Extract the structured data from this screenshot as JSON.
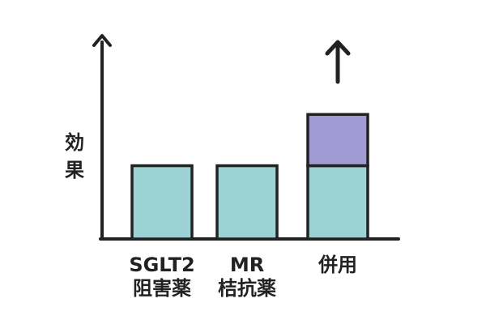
{
  "chart_data": {
    "type": "bar",
    "ylabel": "効果",
    "categories": [
      {
        "line1": "SGLT2",
        "line2": "阻害薬"
      },
      {
        "line1": "MR",
        "line2": "桔抗薬"
      },
      {
        "line1": "併用",
        "line2": ""
      }
    ],
    "series": [
      {
        "values": [
          1,
          1,
          1
        ],
        "color": "#9dd2d4"
      },
      {
        "values": [
          0,
          0,
          0.7
        ],
        "color": "#a29bd3"
      }
    ],
    "ylim": [
      0,
      2.4
    ],
    "grid": false,
    "legend": "none",
    "annotations": [
      "up-arrow-above-combined-bar"
    ]
  },
  "colors": {
    "axis": "#222222",
    "bar_outline": "#222222",
    "background": "#ffffff"
  }
}
